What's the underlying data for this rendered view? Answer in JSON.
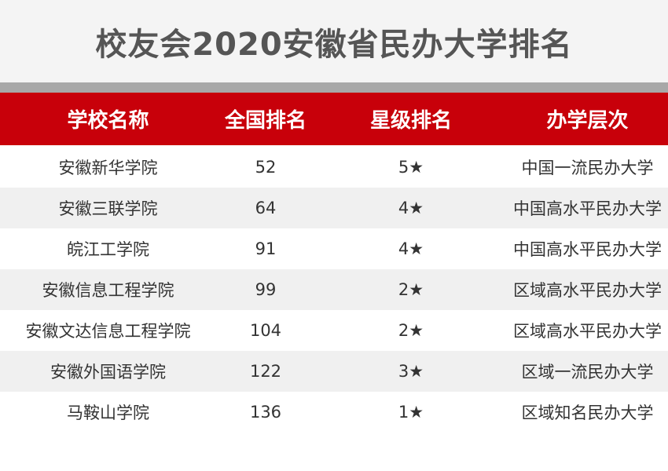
{
  "header": {
    "title": "校友会2020安徽省民办大学排名"
  },
  "table": {
    "columns": [
      "学校名称",
      "全国排名",
      "星级排名",
      "办学层次"
    ],
    "rows": [
      [
        "安徽新华学院",
        52,
        "5★",
        "中国一流民办大学"
      ],
      [
        "安徽三联学院",
        64,
        "4★",
        "中国高水平民办大学"
      ],
      [
        "皖江工学院",
        91,
        "4★",
        "中国高水平民办大学"
      ],
      [
        "安徽信息工程学院",
        99,
        "2★",
        "区域高水平民办大学"
      ],
      [
        "安徽文达信息工程学院",
        104,
        "2★",
        "区域高水平民办大学"
      ],
      [
        "安徽外国语学院",
        122,
        "3★",
        "区域一流民办大学"
      ],
      [
        "马鞍山学院",
        136,
        "1★",
        "区域知名民办大学"
      ]
    ]
  }
}
